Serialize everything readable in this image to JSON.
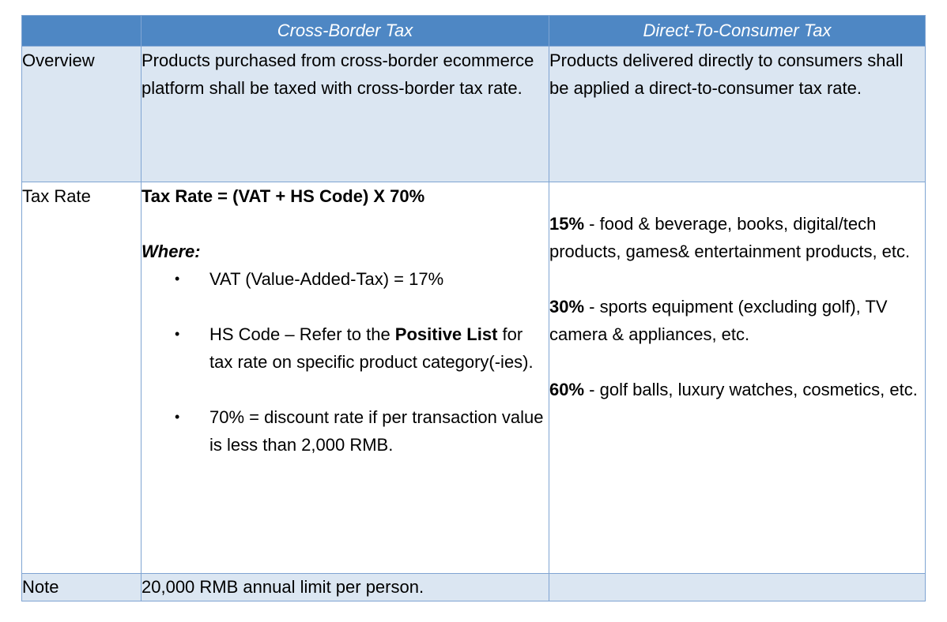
{
  "header": {
    "col1": "",
    "col2": "Cross-Border Tax",
    "col3": "Direct-To-Consumer Tax"
  },
  "overview": {
    "label": "Overview",
    "cross_border": "Products purchased from cross-border ecommerce platform shall be taxed with cross-border tax rate.",
    "direct": "Products delivered directly to consumers shall be applied a direct-to-consumer tax rate."
  },
  "tax_rate": {
    "label": "Tax Rate",
    "formula": "Tax Rate = (VAT + HS Code) X 70%",
    "where": "Where:",
    "points": [
      {
        "pre": "VAT (Value-Added-Tax) = 17%",
        "bold": "",
        "post": ""
      },
      {
        "pre": "HS Code – Refer to the ",
        "bold": "Positive List",
        "post": " for tax rate on specific product category(-ies)."
      },
      {
        "pre": "70% = discount rate if per transaction value is less than 2,000 RMB.",
        "bold": "",
        "post": ""
      }
    ],
    "bullet": "•",
    "direct_rates": [
      {
        "rate": "15%",
        "desc": " - food & beverage, books, digital/tech products, games& entertainment products, etc."
      },
      {
        "rate": "30%",
        "desc": " - sports equipment (excluding golf), TV camera & appliances, etc."
      },
      {
        "rate": "60%",
        "desc": " - golf balls, luxury watches, cosmetics, etc."
      }
    ]
  },
  "note": {
    "label": "Note",
    "cross_border": "20,000 RMB annual limit per person.",
    "direct": ""
  },
  "colors": {
    "header_bg": "#4e87c4",
    "shade_bg": "#dbe6f2",
    "border": "#7fa4d2"
  }
}
